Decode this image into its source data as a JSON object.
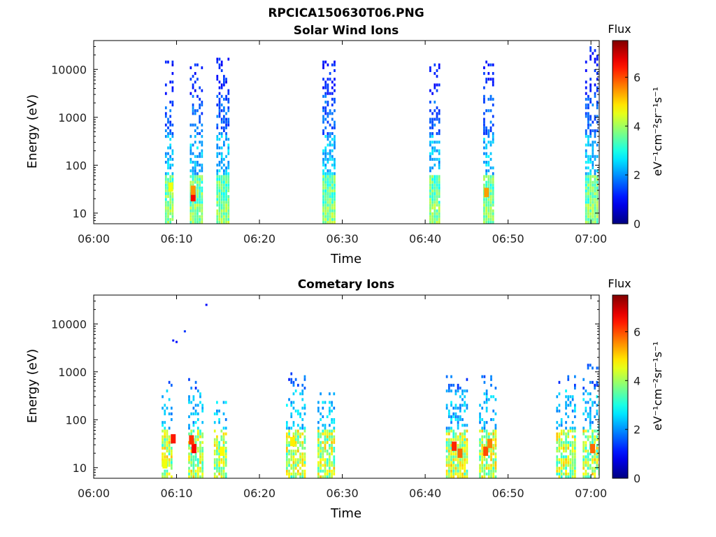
{
  "figure": {
    "filename": "RPCICA150630T06.PNG"
  },
  "chart_data": [
    {
      "type": "heatmap",
      "title": "Solar Wind Ions",
      "xlabel": "Time",
      "ylabel": "Energy (eV)",
      "x_ticks": [
        "06:00",
        "06:10",
        "06:20",
        "06:30",
        "06:40",
        "06:50",
        "07:00"
      ],
      "x_range_minutes_after_0600": [
        0,
        61
      ],
      "y_scale": "log",
      "y_ticks": [
        "10",
        "100",
        "1000",
        "10000"
      ],
      "y_range": [
        6,
        40000
      ],
      "colorbar": {
        "title": "Flux",
        "label": "eV⁻¹cm⁻²sr⁻¹s⁻¹",
        "ticks": [
          "0",
          "2",
          "4",
          "6"
        ],
        "range": [
          0,
          7.5
        ],
        "colormap": "jet"
      },
      "bursts": [
        {
          "t0": 8.6,
          "t1": 9.6,
          "emax": 16000,
          "density": 0.55
        },
        {
          "t0": 11.6,
          "t1": 13.0,
          "emax": 14000,
          "density": 0.6
        },
        {
          "t0": 14.8,
          "t1": 16.2,
          "emax": 20000,
          "density": 0.6
        },
        {
          "t0": 27.6,
          "t1": 29.0,
          "emax": 15000,
          "density": 0.65
        },
        {
          "t0": 40.5,
          "t1": 41.8,
          "emax": 14000,
          "density": 0.6
        },
        {
          "t0": 47.0,
          "t1": 48.3,
          "emax": 15000,
          "density": 0.6
        },
        {
          "t0": 59.3,
          "t1": 60.7,
          "emax": 30000,
          "density": 0.6
        }
      ],
      "hotspots": [
        {
          "t": 12.0,
          "e": 22,
          "value": 6.6
        },
        {
          "t": 12.0,
          "e": 30,
          "value": 5.5
        },
        {
          "t": 47.4,
          "e": 27,
          "value": 5.4
        },
        {
          "t": 9.3,
          "e": 35,
          "value": 4.6
        }
      ]
    },
    {
      "type": "heatmap",
      "title": "Cometary Ions",
      "xlabel": "Time",
      "ylabel": "Energy (eV)",
      "x_ticks": [
        "06:00",
        "06:10",
        "06:20",
        "06:30",
        "06:40",
        "06:50",
        "07:00"
      ],
      "x_range_minutes_after_0600": [
        0,
        61
      ],
      "y_scale": "log",
      "y_ticks": [
        "10",
        "100",
        "1000",
        "10000"
      ],
      "y_range": [
        6,
        40000
      ],
      "colorbar": {
        "title": "Flux",
        "label": "eV⁻¹cm⁻²sr⁻¹s⁻¹",
        "ticks": [
          "0",
          "2",
          "4",
          "6"
        ],
        "range": [
          0,
          7.5
        ],
        "colormap": "jet"
      },
      "bursts": [
        {
          "t0": 8.2,
          "t1": 9.4,
          "emax": 700,
          "density": 0.45
        },
        {
          "t0": 11.4,
          "t1": 13.2,
          "emax": 700,
          "density": 0.5
        },
        {
          "t0": 14.5,
          "t1": 16.0,
          "emax": 300,
          "density": 0.45
        },
        {
          "t0": 23.2,
          "t1": 25.6,
          "emax": 1100,
          "density": 0.45
        },
        {
          "t0": 27.0,
          "t1": 29.0,
          "emax": 450,
          "density": 0.5
        },
        {
          "t0": 42.5,
          "t1": 45.0,
          "emax": 1000,
          "density": 0.55
        },
        {
          "t0": 46.5,
          "t1": 48.5,
          "emax": 900,
          "density": 0.5
        },
        {
          "t0": 55.8,
          "t1": 58.0,
          "emax": 850,
          "density": 0.5
        },
        {
          "t0": 59.0,
          "t1": 61.0,
          "emax": 1400,
          "density": 0.5
        }
      ],
      "hotspots": [
        {
          "t": 12.1,
          "e": 25,
          "value": 6.6
        },
        {
          "t": 11.8,
          "e": 38,
          "value": 6.2
        },
        {
          "t": 43.5,
          "e": 28,
          "value": 6.3
        },
        {
          "t": 44.2,
          "e": 20,
          "value": 5.8
        },
        {
          "t": 47.3,
          "e": 22,
          "value": 6.0
        },
        {
          "t": 47.8,
          "e": 32,
          "value": 5.6
        },
        {
          "t": 9.6,
          "e": 40,
          "value": 6.4
        },
        {
          "t": 60.2,
          "e": 25,
          "value": 5.8
        },
        {
          "t": 24.0,
          "e": 35,
          "value": 4.8
        },
        {
          "t": 15.5,
          "e": 22,
          "value": 4.7
        },
        {
          "t": 8.6,
          "e": 12,
          "value": 4.6
        }
      ],
      "outliers": [
        {
          "t": 10.0,
          "e": 4200,
          "value": 1.0
        },
        {
          "t": 13.6,
          "e": 25000,
          "value": 1.0
        },
        {
          "t": 9.6,
          "e": 4500,
          "value": 1.1
        },
        {
          "t": 11.0,
          "e": 7000,
          "value": 1.3
        }
      ]
    }
  ]
}
